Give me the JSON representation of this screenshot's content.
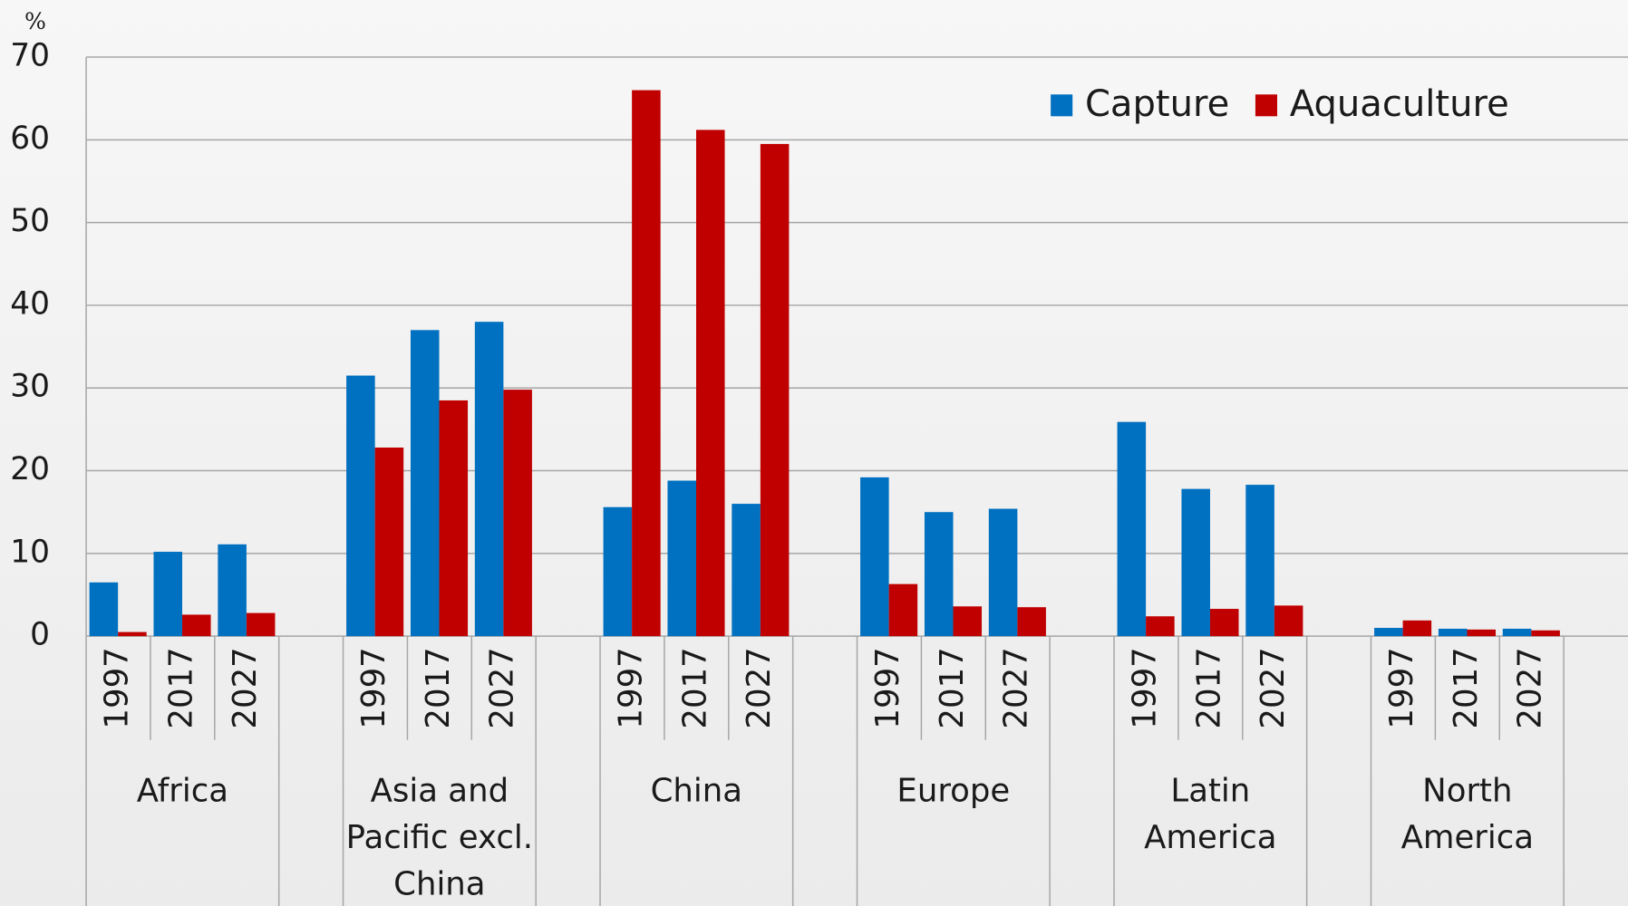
{
  "chart_data": {
    "type": "bar",
    "y_unit": "%",
    "groups": [
      "Africa",
      "Asia and Pacific excl. China",
      "China",
      "Europe",
      "Latin America",
      "North America"
    ],
    "categories": [
      "1997",
      "2017",
      "2027",
      "1997",
      "2017",
      "2027",
      "1997",
      "2017",
      "2027",
      "1997",
      "2017",
      "2027",
      "1997",
      "2017",
      "2027",
      "1997",
      "2017",
      "2027"
    ],
    "series": [
      {
        "name": "Capture",
        "color": "#0070c0",
        "values": [
          6.5,
          10.2,
          11.1,
          31.5,
          37.0,
          38.0,
          15.6,
          18.8,
          16.0,
          19.2,
          15.0,
          15.4,
          25.9,
          17.8,
          18.3,
          1.0,
          0.9,
          0.9
        ]
      },
      {
        "name": "Aquaculture",
        "color": "#c00000",
        "values": [
          0.5,
          2.6,
          2.8,
          22.8,
          28.5,
          29.8,
          66.0,
          61.2,
          59.5,
          6.3,
          3.6,
          3.5,
          2.4,
          3.3,
          3.7,
          1.9,
          0.8,
          0.7
        ]
      }
    ],
    "ylim": [
      0,
      70
    ],
    "yticks": [
      0,
      10,
      20,
      30,
      40,
      50,
      60,
      70
    ],
    "grid": true,
    "legend": "upper right"
  }
}
